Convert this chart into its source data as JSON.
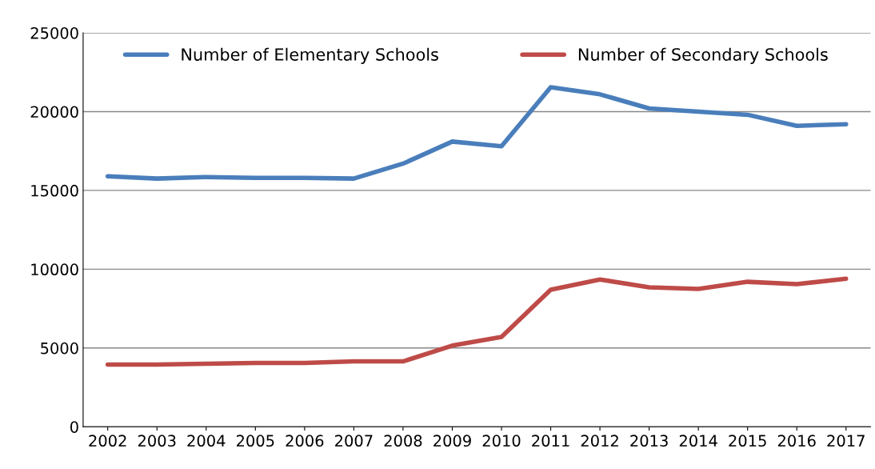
{
  "chart_data": {
    "type": "line",
    "categories": [
      "2002",
      "2003",
      "2004",
      "2005",
      "2006",
      "2007",
      "2008",
      "2009",
      "2010",
      "2011",
      "2012",
      "2013",
      "2014",
      "2015",
      "2016",
      "2017"
    ],
    "series": [
      {
        "name": "Number of Elementary Schools",
        "color": "#4a7ebb",
        "values": [
          15900,
          15750,
          15850,
          15800,
          15800,
          15750,
          16700,
          18100,
          17800,
          21550,
          21100,
          20200,
          20000,
          19800,
          19100,
          19200
        ]
      },
      {
        "name": "Number of Secondary Schools",
        "color": "#be4b48",
        "values": [
          3950,
          3950,
          4000,
          4050,
          4050,
          4150,
          4150,
          5150,
          5700,
          8700,
          9350,
          8850,
          8750,
          9200,
          9050,
          9400
        ]
      }
    ],
    "ylim": [
      0,
      25000
    ],
    "yticks": [
      0,
      5000,
      10000,
      15000,
      20000,
      25000
    ],
    "grid": "y",
    "legend": "top",
    "marker": "none",
    "line_style": "solid"
  }
}
